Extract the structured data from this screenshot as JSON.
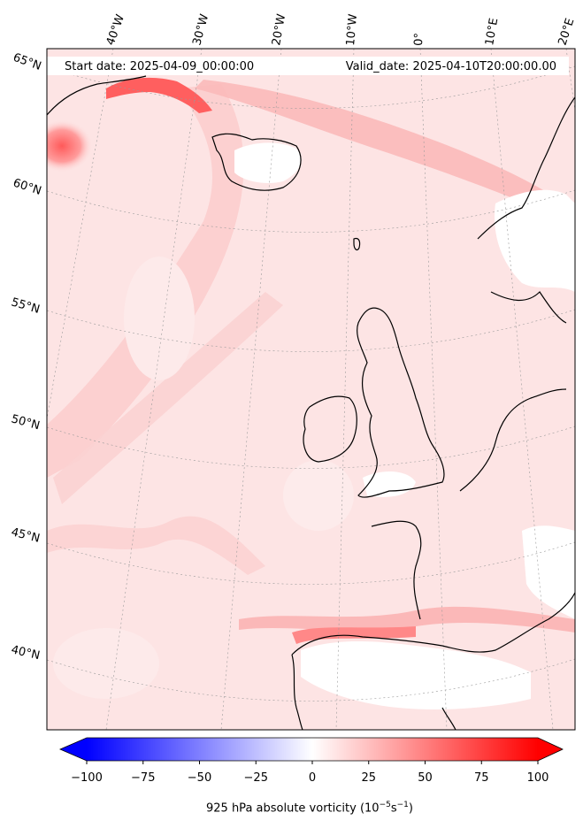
{
  "header": {
    "start_label": "Start date: 2025-04-09_00:00:00",
    "valid_label": "Valid_date: 2025-04-10T20:00:00.00"
  },
  "longitude_labels": [
    "40°W",
    "30°W",
    "20°W",
    "10°W",
    "0°",
    "10°E",
    "20°E"
  ],
  "latitude_labels": [
    "65°N",
    "60°N",
    "55°N",
    "50°N",
    "45°N",
    "40°N"
  ],
  "colorbar": {
    "ticks": [
      "−100",
      "−75",
      "−50",
      "−25",
      "0",
      "25",
      "50",
      "75",
      "100"
    ],
    "min": -100,
    "max": 100,
    "low_color": "#0000ff",
    "mid_color": "#ffffff",
    "high_color": "#ff0000",
    "title": "925 hPa absolute vorticity (10",
    "title_exp1": "−5",
    "title_mid": "s",
    "title_exp2": "−1",
    "title_end": ")"
  },
  "colors": {
    "field_base": "#fde6e6",
    "coast": "#000000",
    "land_white": "#ffffff"
  }
}
